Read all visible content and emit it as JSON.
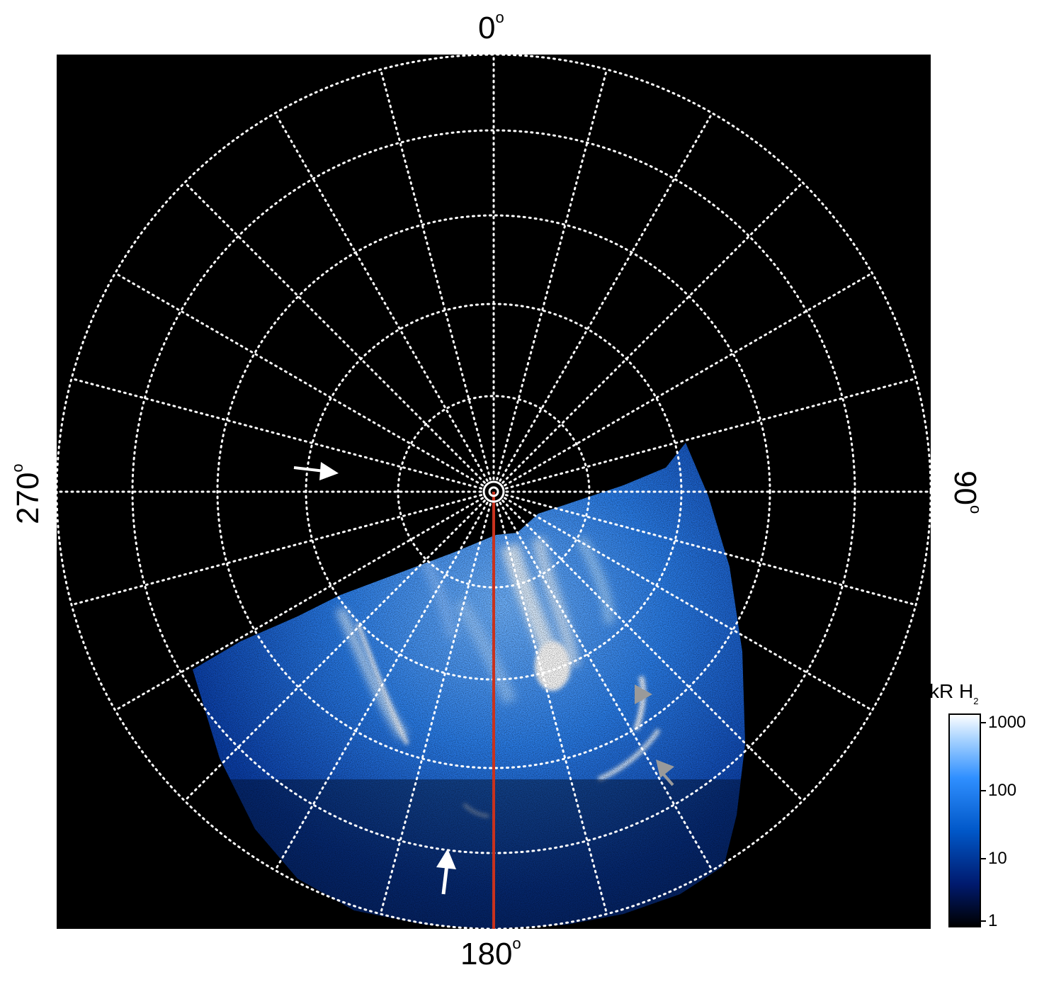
{
  "figure": {
    "angle_labels": {
      "top": "0",
      "right": "90",
      "bottom": "180",
      "left": "270",
      "degree_symbol": "o"
    },
    "colorbar": {
      "title_main": "kR H",
      "title_subscript": "2",
      "ticks": [
        "1000",
        "100",
        "10",
        "1"
      ],
      "scale": "log",
      "range": [
        1,
        1000
      ],
      "colors": [
        "#000000",
        "#001a6e",
        "#0057c8",
        "#2f8fff",
        "#a6d2ff",
        "#ffffff"
      ]
    },
    "meridian_line_color": "#c8321e",
    "grid_color": "#ffffff",
    "background_color": "#000000",
    "emission_colors": [
      "#0b3fa8",
      "#2a7de8",
      "#8cc4ff",
      "#eef7ff"
    ],
    "arrow_colors": {
      "white": "#ffffff",
      "gray": "#9a9a9a"
    },
    "icons": [
      "white-arrow-icon",
      "gray-triangle-arrow-icon"
    ]
  }
}
